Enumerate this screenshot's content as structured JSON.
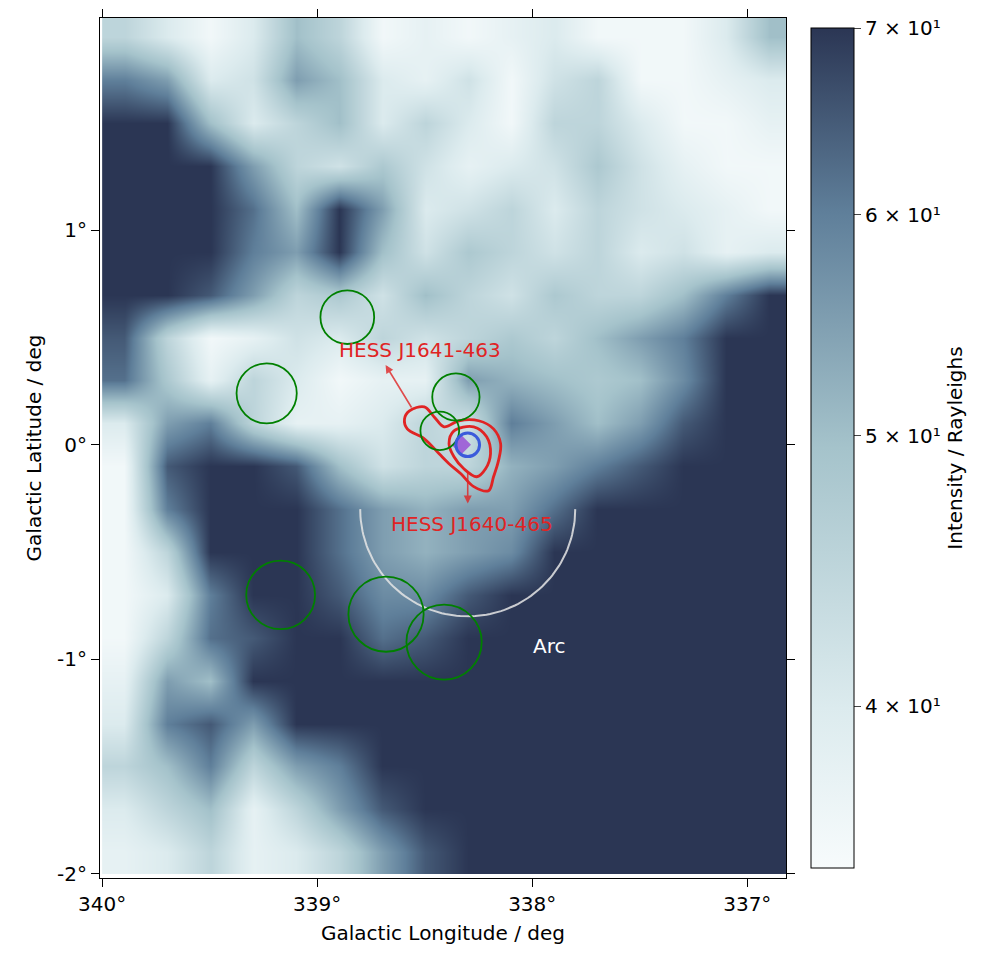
{
  "chart_data": {
    "type": "heatmap",
    "xlabel": "Galactic Longitude / deg",
    "ylabel": "Galactic Latitude / deg",
    "zlabel": "Intensity / Rayleighs",
    "x": [
      339.9,
      339.7,
      339.5,
      339.3,
      339.1,
      338.9,
      338.7,
      338.5,
      338.3,
      338.1,
      337.9,
      337.7,
      337.5,
      337.3,
      337.1,
      336.9
    ],
    "y": [
      1.9,
      1.7,
      1.5,
      1.3,
      1.1,
      0.9,
      0.7,
      0.5,
      0.3,
      0.1,
      -0.1,
      -0.3,
      -0.5,
      -0.7,
      -0.9,
      -1.1,
      -1.3,
      -1.5,
      -1.7,
      -1.9
    ],
    "z": [
      [
        45,
        40,
        36,
        40,
        50,
        45,
        36,
        38,
        36,
        38,
        40,
        36,
        36,
        36,
        40,
        50
      ],
      [
        60,
        55,
        40,
        42,
        55,
        50,
        40,
        38,
        42,
        36,
        42,
        45,
        36,
        36,
        38,
        40
      ],
      [
        70,
        70,
        50,
        40,
        45,
        50,
        40,
        45,
        40,
        36,
        45,
        45,
        40,
        36,
        36,
        38
      ],
      [
        70,
        70,
        70,
        55,
        45,
        42,
        48,
        42,
        38,
        40,
        42,
        48,
        42,
        38,
        36,
        36
      ],
      [
        70,
        70,
        70,
        62,
        50,
        70,
        55,
        40,
        42,
        45,
        40,
        45,
        42,
        40,
        38,
        36
      ],
      [
        70,
        70,
        70,
        60,
        55,
        70,
        50,
        42,
        48,
        45,
        42,
        45,
        40,
        42,
        38,
        40
      ],
      [
        70,
        70,
        65,
        55,
        45,
        48,
        42,
        50,
        45,
        42,
        48,
        45,
        45,
        50,
        60,
        70
      ],
      [
        65,
        45,
        36,
        38,
        42,
        40,
        45,
        42,
        45,
        48,
        45,
        50,
        55,
        60,
        70,
        70
      ],
      [
        62,
        48,
        38,
        45,
        40,
        36,
        38,
        38,
        55,
        52,
        50,
        48,
        50,
        58,
        70,
        70
      ],
      [
        40,
        55,
        60,
        45,
        38,
        38,
        40,
        45,
        42,
        60,
        55,
        50,
        55,
        65,
        70,
        70
      ],
      [
        36,
        65,
        70,
        70,
        65,
        50,
        42,
        45,
        45,
        52,
        55,
        60,
        65,
        70,
        70,
        70
      ],
      [
        36,
        60,
        70,
        70,
        70,
        62,
        55,
        52,
        55,
        55,
        62,
        70,
        70,
        70,
        70,
        70
      ],
      [
        36,
        45,
        70,
        70,
        70,
        62,
        55,
        52,
        55,
        58,
        70,
        70,
        70,
        70,
        70,
        70
      ],
      [
        36,
        40,
        60,
        70,
        70,
        65,
        58,
        58,
        65,
        70,
        70,
        70,
        70,
        70,
        70,
        70
      ],
      [
        36,
        45,
        62,
        65,
        70,
        70,
        62,
        65,
        70,
        70,
        70,
        70,
        70,
        70,
        70,
        70
      ],
      [
        38,
        55,
        50,
        70,
        70,
        70,
        70,
        70,
        70,
        70,
        70,
        70,
        70,
        70,
        70,
        70
      ],
      [
        40,
        60,
        65,
        55,
        70,
        70,
        70,
        70,
        70,
        70,
        70,
        70,
        70,
        70,
        70,
        70
      ],
      [
        45,
        50,
        60,
        45,
        55,
        60,
        70,
        70,
        70,
        70,
        70,
        70,
        70,
        70,
        70,
        70
      ],
      [
        40,
        45,
        50,
        38,
        45,
        55,
        65,
        70,
        70,
        70,
        70,
        70,
        70,
        70,
        70,
        70
      ],
      [
        38,
        40,
        45,
        38,
        40,
        45,
        55,
        65,
        70,
        70,
        70,
        70,
        70,
        70,
        70,
        70
      ]
    ],
    "xlim": [
      340.01,
      336.82
    ],
    "ylim": [
      -2.02,
      1.99
    ],
    "xticks": [
      {
        "value": 340,
        "label": "340°"
      },
      {
        "value": 339,
        "label": "339°"
      },
      {
        "value": 338,
        "label": "338°"
      },
      {
        "value": 337,
        "label": "337°"
      }
    ],
    "yticks": [
      {
        "value": -2,
        "label": "-2°"
      },
      {
        "value": -1,
        "label": "-1°"
      },
      {
        "value": 0,
        "label": "0°"
      },
      {
        "value": 1,
        "label": "1°"
      }
    ],
    "zlim": [
      35,
      70
    ],
    "zticks": [
      {
        "value": 40,
        "label": "4 × 10¹"
      },
      {
        "value": 50,
        "label": "5 × 10¹"
      },
      {
        "value": 60,
        "label": "6 × 10¹"
      },
      {
        "value": 70,
        "label": "7 × 10¹"
      }
    ],
    "grid": false,
    "circles": {
      "color": "green",
      "items": [
        {
          "lon": 338.86,
          "lat": 0.595,
          "r": 0.125
        },
        {
          "lon": 339.235,
          "lat": 0.24,
          "r": 0.14
        },
        {
          "lon": 338.355,
          "lat": 0.223,
          "r": 0.11
        },
        {
          "lon": 338.43,
          "lat": 0.065,
          "r": 0.09
        },
        {
          "lon": 339.17,
          "lat": -0.7,
          "r": 0.16
        },
        {
          "lon": 338.68,
          "lat": -0.79,
          "r": 0.175
        },
        {
          "lon": 338.41,
          "lat": -0.92,
          "r": 0.175
        }
      ]
    },
    "contours": {
      "color": "#e02424",
      "items": [
        {
          "lon": [
            338.571,
            338.502,
            338.456,
            338.41,
            338.341,
            338.249,
            338.18,
            338.147,
            338.157,
            338.18,
            338.203,
            338.272,
            338.332,
            338.387,
            338.433,
            338.502,
            338.581,
            338.594,
            338.571
          ],
          "lat": [
            0.158,
            0.177,
            0.13,
            0.084,
            0.112,
            0.112,
            0.074,
            0.005,
            -0.074,
            -0.149,
            -0.214,
            -0.195,
            -0.135,
            -0.088,
            -0.042,
            0.028,
            0.074,
            0.121,
            0.158
          ]
        },
        {
          "lon": [
            338.364,
            338.272,
            338.212,
            338.194,
            338.217,
            338.258,
            338.318,
            338.364,
            338.387,
            338.364
          ],
          "lat": [
            0.065,
            0.084,
            0.037,
            -0.042,
            -0.112,
            -0.149,
            -0.112,
            -0.056,
            0.005,
            0.065
          ]
        }
      ]
    },
    "source": {
      "lon": 338.3,
      "lat": 0.0,
      "r": 0.055,
      "color": "#3b5bdb"
    },
    "point": {
      "lon": 338.33,
      "lat": 0.0,
      "color": "#9b59d6",
      "marker": "diamond"
    },
    "arc": {
      "lon": 338.3,
      "lat": -0.3,
      "r": 0.5,
      "color": "#e6e6e6"
    },
    "annotations": [
      {
        "text": "HESS J1641-463",
        "lon": 338.52,
        "lat": 0.44,
        "color": "#e02424",
        "arrow": {
          "from": [
            338.557,
            0.167
          ],
          "to": [
            338.682,
            0.372
          ]
        }
      },
      {
        "text": "HESS J1640-465",
        "lon": 338.28,
        "lat": -0.37,
        "color": "#e02424",
        "arrow": {
          "from": [
            338.3,
            -0.121
          ],
          "to": [
            338.3,
            -0.274
          ]
        }
      },
      {
        "text": "Arc",
        "lon": 337.92,
        "lat": -0.94,
        "color": "#ffffff"
      }
    ]
  }
}
